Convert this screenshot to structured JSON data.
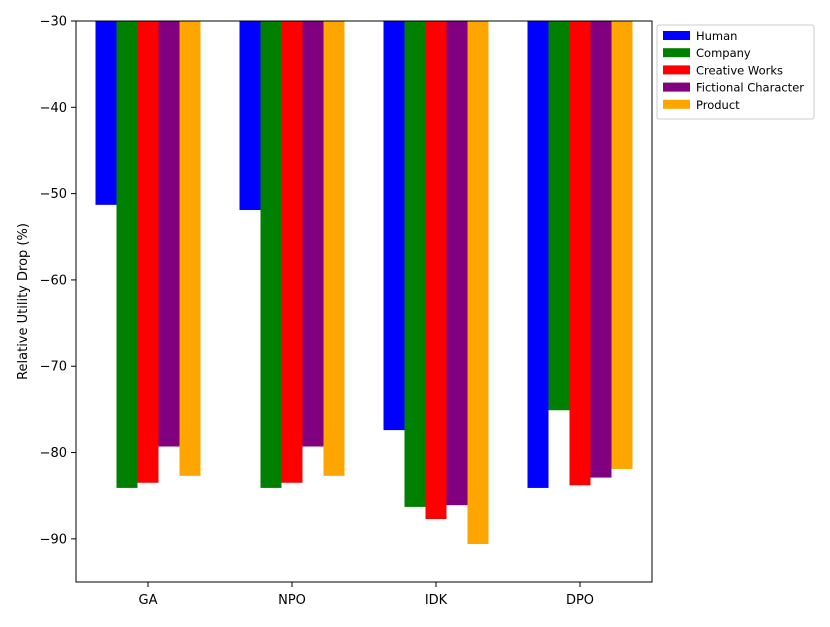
{
  "chart_data": {
    "type": "bar",
    "categories": [
      "GA",
      "NPO",
      "IDK",
      "DPO"
    ],
    "series": [
      {
        "name": "Human",
        "color": "#0000ff",
        "values": [
          -51.3,
          -51.9,
          -77.4,
          -84.1
        ]
      },
      {
        "name": "Company",
        "color": "#008000",
        "values": [
          -84.1,
          -84.1,
          -86.3,
          -75.1
        ]
      },
      {
        "name": "Creative Works",
        "color": "#ff0000",
        "values": [
          -83.5,
          -83.5,
          -87.7,
          -83.8
        ]
      },
      {
        "name": "Fictional Character",
        "color": "#800080",
        "values": [
          -79.3,
          -79.3,
          -86.1,
          -82.9
        ]
      },
      {
        "name": "Product",
        "color": "#ffa500",
        "values": [
          -82.7,
          -82.7,
          -90.6,
          -81.9
        ]
      }
    ],
    "xlabel": "",
    "ylabel": "Relative Utility Drop (%)",
    "ylim": [
      -95,
      -30
    ],
    "yticks": [
      -30,
      -40,
      -50,
      -60,
      -70,
      -80,
      -90
    ],
    "ytick_labels": [
      "−30",
      "−40",
      "−50",
      "−60",
      "−70",
      "−80",
      "−90"
    ],
    "grid": false,
    "legend_position": "outside-top-right"
  }
}
